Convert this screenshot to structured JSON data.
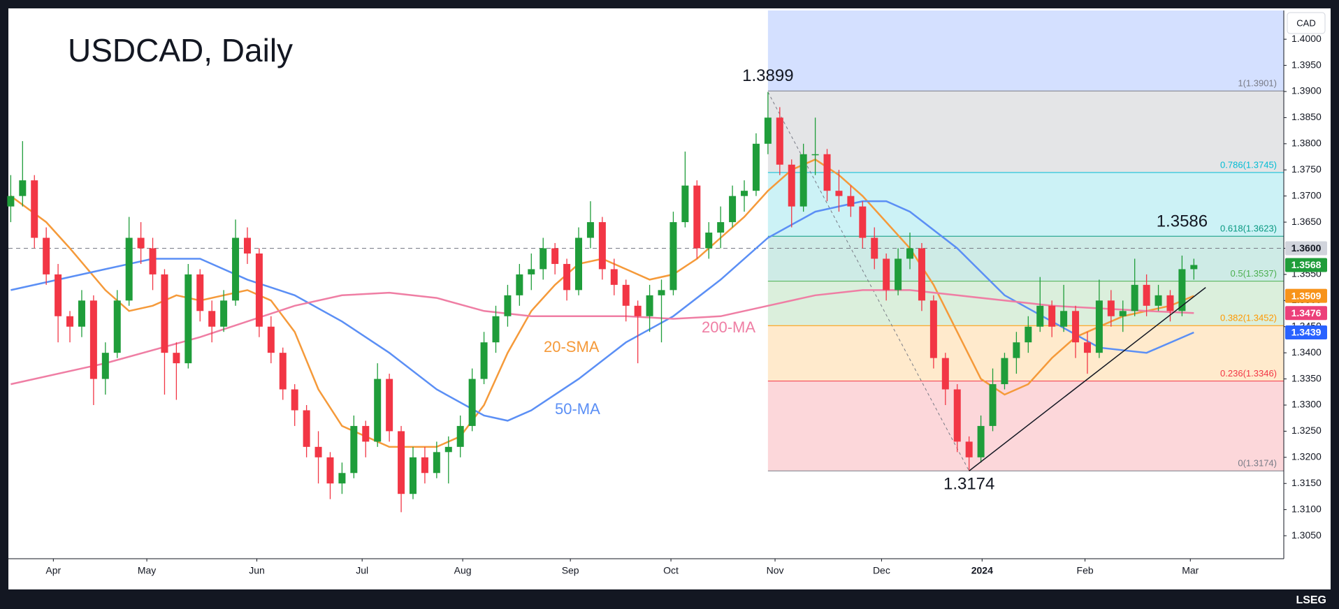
{
  "chart_data": {
    "type": "candlestick",
    "title": "USDCAD, Daily",
    "currency": "CAD",
    "source": "LSEG",
    "up_color": "#1f9d3a",
    "down_color": "#f23645",
    "xlim": [
      -0.2,
      107.6
    ],
    "xticks": [
      {
        "value": 3.6,
        "label": "Apr"
      },
      {
        "value": 11.5,
        "label": "May"
      },
      {
        "value": 20.8,
        "label": "Jun"
      },
      {
        "value": 29.7,
        "label": "Jul"
      },
      {
        "value": 38.2,
        "label": "Aug"
      },
      {
        "value": 47.3,
        "label": "Sep"
      },
      {
        "value": 55.8,
        "label": "Oct"
      },
      {
        "value": 64.6,
        "label": "Nov"
      },
      {
        "value": 73.6,
        "label": "Dec"
      },
      {
        "value": 82.1,
        "label": "2024"
      },
      {
        "value": 90.8,
        "label": "Feb"
      },
      {
        "value": 99.7,
        "label": "Mar"
      }
    ],
    "ylim": [
      1.3006,
      1.4055
    ],
    "yticks": [
      {
        "value": 1.305,
        "label": "1.3050"
      },
      {
        "value": 1.31,
        "label": "1.3100"
      },
      {
        "value": 1.315,
        "label": "1.3150"
      },
      {
        "value": 1.32,
        "label": "1.3200"
      },
      {
        "value": 1.325,
        "label": "1.3250"
      },
      {
        "value": 1.33,
        "label": "1.3300"
      },
      {
        "value": 1.335,
        "label": "1.3350"
      },
      {
        "value": 1.34,
        "label": "1.3400"
      },
      {
        "value": 1.345,
        "label": "1.3450"
      },
      {
        "value": 1.35,
        "label": "1.3500"
      },
      {
        "value": 1.355,
        "label": "1.3550"
      },
      {
        "value": 1.36,
        "label": "1.3600"
      },
      {
        "value": 1.365,
        "label": "1.3650"
      },
      {
        "value": 1.37,
        "label": "1.3700"
      },
      {
        "value": 1.375,
        "label": "1.3750"
      },
      {
        "value": 1.38,
        "label": "1.3800"
      },
      {
        "value": 1.385,
        "label": "1.3850"
      },
      {
        "value": 1.39,
        "label": "1.3900"
      },
      {
        "value": 1.395,
        "label": "1.3950"
      },
      {
        "value": 1.4,
        "label": "1.4000"
      }
    ],
    "candles": [
      [
        1.368,
        1.374,
        1.365,
        1.37
      ],
      [
        1.37,
        1.3805,
        1.368,
        1.373
      ],
      [
        1.373,
        1.374,
        1.36,
        1.362
      ],
      [
        1.362,
        1.364,
        1.353,
        1.355
      ],
      [
        1.355,
        1.357,
        1.342,
        1.347
      ],
      [
        1.347,
        1.348,
        1.342,
        1.345
      ],
      [
        1.345,
        1.352,
        1.343,
        1.35
      ],
      [
        1.35,
        1.351,
        1.33,
        1.335
      ],
      [
        1.335,
        1.342,
        1.332,
        1.34
      ],
      [
        1.34,
        1.352,
        1.339,
        1.35
      ],
      [
        1.35,
        1.366,
        1.349,
        1.362
      ],
      [
        1.362,
        1.365,
        1.357,
        1.36
      ],
      [
        1.36,
        1.362,
        1.352,
        1.355
      ],
      [
        1.355,
        1.356,
        1.332,
        1.34
      ],
      [
        1.34,
        1.342,
        1.331,
        1.338
      ],
      [
        1.338,
        1.357,
        1.337,
        1.355
      ],
      [
        1.355,
        1.356,
        1.346,
        1.348
      ],
      [
        1.348,
        1.35,
        1.342,
        1.345
      ],
      [
        1.345,
        1.352,
        1.344,
        1.35
      ],
      [
        1.35,
        1.3655,
        1.349,
        1.362
      ],
      [
        1.362,
        1.364,
        1.357,
        1.359
      ],
      [
        1.359,
        1.36,
        1.343,
        1.345
      ],
      [
        1.345,
        1.347,
        1.338,
        1.34
      ],
      [
        1.34,
        1.341,
        1.331,
        1.333
      ],
      [
        1.333,
        1.334,
        1.326,
        1.329
      ],
      [
        1.329,
        1.33,
        1.32,
        1.322
      ],
      [
        1.322,
        1.325,
        1.315,
        1.32
      ],
      [
        1.32,
        1.321,
        1.312,
        1.315
      ],
      [
        1.315,
        1.319,
        1.313,
        1.317
      ],
      [
        1.317,
        1.328,
        1.316,
        1.326
      ],
      [
        1.326,
        1.327,
        1.32,
        1.323
      ],
      [
        1.323,
        1.338,
        1.322,
        1.335
      ],
      [
        1.335,
        1.336,
        1.323,
        1.325
      ],
      [
        1.325,
        1.326,
        1.3095,
        1.313
      ],
      [
        1.313,
        1.322,
        1.312,
        1.32
      ],
      [
        1.32,
        1.322,
        1.315,
        1.317
      ],
      [
        1.317,
        1.323,
        1.316,
        1.321
      ],
      [
        1.321,
        1.324,
        1.315,
        1.322
      ],
      [
        1.322,
        1.328,
        1.32,
        1.326
      ],
      [
        1.326,
        1.337,
        1.325,
        1.335
      ],
      [
        1.335,
        1.344,
        1.334,
        1.342
      ],
      [
        1.342,
        1.349,
        1.34,
        1.347
      ],
      [
        1.347,
        1.353,
        1.345,
        1.351
      ],
      [
        1.351,
        1.357,
        1.349,
        1.355
      ],
      [
        1.355,
        1.359,
        1.352,
        1.356
      ],
      [
        1.356,
        1.362,
        1.354,
        1.36
      ],
      [
        1.36,
        1.361,
        1.355,
        1.357
      ],
      [
        1.357,
        1.358,
        1.35,
        1.352
      ],
      [
        1.352,
        1.364,
        1.351,
        1.362
      ],
      [
        1.362,
        1.369,
        1.36,
        1.365
      ],
      [
        1.365,
        1.366,
        1.354,
        1.356
      ],
      [
        1.356,
        1.358,
        1.351,
        1.353
      ],
      [
        1.353,
        1.354,
        1.346,
        1.349
      ],
      [
        1.349,
        1.35,
        1.338,
        1.347
      ],
      [
        1.347,
        1.353,
        1.344,
        1.351
      ],
      [
        1.351,
        1.354,
        1.342,
        1.352
      ],
      [
        1.352,
        1.367,
        1.351,
        1.365
      ],
      [
        1.365,
        1.3785,
        1.364,
        1.372
      ],
      [
        1.372,
        1.373,
        1.358,
        1.36
      ],
      [
        1.36,
        1.365,
        1.358,
        1.363
      ],
      [
        1.363,
        1.368,
        1.36,
        1.365
      ],
      [
        1.365,
        1.372,
        1.364,
        1.37
      ],
      [
        1.37,
        1.373,
        1.367,
        1.371
      ],
      [
        1.371,
        1.382,
        1.37,
        1.38
      ],
      [
        1.38,
        1.3899,
        1.378,
        1.385
      ],
      [
        1.385,
        1.387,
        1.374,
        1.376
      ],
      [
        1.376,
        1.377,
        1.364,
        1.368
      ],
      [
        1.368,
        1.38,
        1.367,
        1.378
      ],
      [
        1.378,
        1.385,
        1.374,
        1.378
      ],
      [
        1.378,
        1.379,
        1.369,
        1.371
      ],
      [
        1.371,
        1.375,
        1.367,
        1.37
      ],
      [
        1.37,
        1.372,
        1.366,
        1.368
      ],
      [
        1.368,
        1.369,
        1.36,
        1.362
      ],
      [
        1.362,
        1.364,
        1.356,
        1.358
      ],
      [
        1.358,
        1.359,
        1.35,
        1.352
      ],
      [
        1.352,
        1.36,
        1.351,
        1.358
      ],
      [
        1.358,
        1.363,
        1.356,
        1.36
      ],
      [
        1.36,
        1.361,
        1.348,
        1.35
      ],
      [
        1.35,
        1.351,
        1.337,
        1.339
      ],
      [
        1.339,
        1.34,
        1.33,
        1.333
      ],
      [
        1.333,
        1.334,
        1.321,
        1.323
      ],
      [
        1.323,
        1.324,
        1.3174,
        1.32
      ],
      [
        1.32,
        1.328,
        1.319,
        1.326
      ],
      [
        1.326,
        1.337,
        1.325,
        1.334
      ],
      [
        1.334,
        1.34,
        1.333,
        1.339
      ],
      [
        1.339,
        1.344,
        1.336,
        1.342
      ],
      [
        1.342,
        1.347,
        1.34,
        1.345
      ],
      [
        1.345,
        1.3545,
        1.344,
        1.349
      ],
      [
        1.349,
        1.35,
        1.343,
        1.345
      ],
      [
        1.345,
        1.353,
        1.344,
        1.348
      ],
      [
        1.348,
        1.349,
        1.339,
        1.342
      ],
      [
        1.342,
        1.344,
        1.336,
        1.34
      ],
      [
        1.34,
        1.354,
        1.339,
        1.35
      ],
      [
        1.35,
        1.352,
        1.345,
        1.347
      ],
      [
        1.347,
        1.35,
        1.344,
        1.348
      ],
      [
        1.348,
        1.358,
        1.347,
        1.353
      ],
      [
        1.353,
        1.355,
        1.347,
        1.349
      ],
      [
        1.349,
        1.353,
        1.348,
        1.351
      ],
      [
        1.351,
        1.352,
        1.346,
        1.348
      ],
      [
        1.348,
        1.3586,
        1.347,
        1.356
      ],
      [
        1.356,
        1.358,
        1.354,
        1.3568
      ]
    ],
    "series": [
      {
        "name": "20-SMA",
        "color": "#f59a3a",
        "x": [
          0,
          3,
          5,
          8,
          10,
          12,
          14,
          16,
          18,
          20,
          22,
          24,
          26,
          28,
          30,
          32,
          34,
          36,
          38,
          40,
          42,
          44,
          46,
          48,
          50,
          52,
          54,
          56,
          58,
          60,
          62,
          64,
          66,
          68,
          70,
          72,
          74,
          76,
          78,
          80,
          82,
          84,
          86,
          88,
          90,
          92,
          94,
          96,
          98,
          100
        ],
        "values": [
          1.37,
          1.365,
          1.36,
          1.352,
          1.348,
          1.349,
          1.351,
          1.35,
          1.351,
          1.352,
          1.35,
          1.344,
          1.333,
          1.326,
          1.324,
          1.322,
          1.322,
          1.322,
          1.324,
          1.33,
          1.34,
          1.348,
          1.353,
          1.357,
          1.358,
          1.356,
          1.354,
          1.355,
          1.358,
          1.362,
          1.366,
          1.371,
          1.375,
          1.377,
          1.374,
          1.37,
          1.365,
          1.36,
          1.353,
          1.344,
          1.335,
          1.332,
          1.334,
          1.339,
          1.343,
          1.345,
          1.347,
          1.348,
          1.349,
          1.3509
        ]
      },
      {
        "name": "50-MA",
        "color": "#5b8ff5",
        "x": [
          0,
          4,
          8,
          12,
          16,
          20,
          24,
          28,
          32,
          36,
          40,
          42,
          44,
          48,
          52,
          56,
          60,
          64,
          68,
          72,
          74,
          76,
          80,
          84,
          88,
          92,
          96,
          100
        ],
        "values": [
          1.352,
          1.354,
          1.356,
          1.358,
          1.358,
          1.354,
          1.351,
          1.346,
          1.34,
          1.333,
          1.328,
          1.327,
          1.329,
          1.335,
          1.342,
          1.347,
          1.354,
          1.362,
          1.367,
          1.369,
          1.369,
          1.367,
          1.36,
          1.351,
          1.346,
          1.341,
          1.34,
          1.3439
        ]
      },
      {
        "name": "200-MA",
        "color": "#ef7ea4",
        "x": [
          0,
          8,
          16,
          24,
          28,
          32,
          36,
          40,
          44,
          48,
          52,
          56,
          60,
          64,
          68,
          72,
          76,
          80,
          84,
          88,
          92,
          96,
          100
        ],
        "values": [
          1.334,
          1.338,
          1.343,
          1.349,
          1.351,
          1.3515,
          1.3505,
          1.348,
          1.347,
          1.347,
          1.347,
          1.3465,
          1.347,
          1.349,
          1.351,
          1.352,
          1.352,
          1.351,
          1.35,
          1.349,
          1.3485,
          1.348,
          1.3476
        ]
      }
    ],
    "fib": {
      "x": [
        64,
        81
      ],
      "levels": [
        {
          "value": 1.3901,
          "label": "1(1.3901)",
          "color": "#787b86",
          "fill": "rgba(41,98,255,0.2)"
        },
        {
          "value": 1.3745,
          "label": "0.786(1.3745)",
          "color": "#00bcd4",
          "fill": "rgba(120,123,134,0.2)"
        },
        {
          "value": 1.3623,
          "label": "0.618(1.3623)",
          "color": "#089981",
          "fill": "rgba(0,188,212,0.2)"
        },
        {
          "value": 1.3537,
          "label": "0.5(1.3537)",
          "color": "#4caf50",
          "fill": "rgba(8,153,129,0.2)"
        },
        {
          "value": 1.3452,
          "label": "0.382(1.3452)",
          "color": "#ff9800",
          "fill": "rgba(76,175,80,0.2)"
        },
        {
          "value": 1.3346,
          "label": "0.236(1.3346)",
          "color": "#f23645",
          "fill": "rgba(255,152,0,0.2)"
        },
        {
          "value": 1.3174,
          "label": "0(1.3174)",
          "color": "#787b86",
          "fill": "rgba(242,54,69,0.2)"
        }
      ]
    },
    "trendline": {
      "x": [
        81,
        101
      ],
      "values": [
        1.3174,
        1.3525
      ],
      "color": "#131722"
    },
    "annotations": [
      {
        "x": 64,
        "value": 1.3899,
        "label": "1.3899"
      },
      {
        "x": 81,
        "value": 1.3174,
        "label": "1.3174"
      },
      {
        "x": 99,
        "value": 1.3586,
        "label": "1.3586"
      }
    ],
    "price_tags": [
      {
        "value": 1.36,
        "label": "1.3600",
        "color": "#d1d4dc",
        "text_color": "#131722",
        "dashed": true
      },
      {
        "value": 1.3568,
        "label": "1.3568",
        "color": "#1f9d3a",
        "text_color": "#ffffff"
      },
      {
        "value": 1.3509,
        "label": "1.3509",
        "color": "#f7931a",
        "text_color": "#ffffff"
      },
      {
        "value": 1.3476,
        "label": "1.3476",
        "color": "#ec407a",
        "text_color": "#ffffff"
      },
      {
        "value": 1.3439,
        "label": "1.3439",
        "color": "#2962ff",
        "text_color": "#ffffff"
      }
    ]
  }
}
